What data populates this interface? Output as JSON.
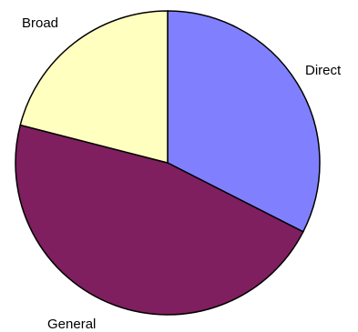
{
  "chart_data": {
    "type": "pie",
    "title": "",
    "start": "top",
    "direction": "clockwise",
    "slices": [
      {
        "label": "Direct",
        "value": 32.5,
        "color": "#8080ff"
      },
      {
        "label": "General",
        "value": 46.5,
        "color": "#7f1f5f"
      },
      {
        "label": "Broad",
        "value": 21.0,
        "color": "#ffffc0"
      }
    ]
  }
}
